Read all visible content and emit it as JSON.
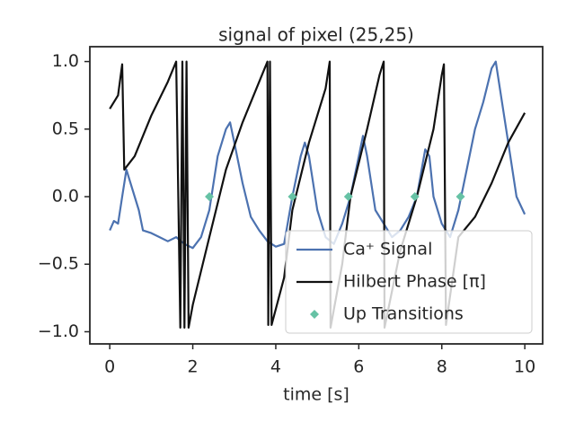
{
  "chart_data": {
    "type": "line",
    "title": "signal of pixel (25,25)",
    "x_label": "time [s]",
    "xlim": [
      -0.48,
      10.43
    ],
    "ylim": [
      -1.09,
      1.11
    ],
    "xticks": [
      0,
      2,
      4,
      6,
      8,
      10
    ],
    "yticks": [
      {
        "value": -1,
        "label": "−1.0"
      },
      {
        "value": -0.5,
        "label": "−0.5"
      },
      {
        "value": 0,
        "label": "0.0"
      },
      0.5,
      {
        "value": 1,
        "label": "1.0"
      }
    ],
    "legend": "lower right",
    "series": [
      {
        "name": "Ca⁺ Signal",
        "color": "#4c72b0",
        "kind": "line",
        "x": [
          0,
          0.1,
          0.2,
          0.3,
          0.4,
          0.5,
          0.6,
          0.7,
          0.8,
          1.0,
          1.2,
          1.4,
          1.6,
          1.8,
          2.0,
          2.2,
          2.4,
          2.6,
          2.8,
          2.9,
          3.0,
          3.2,
          3.4,
          3.6,
          3.8,
          4.0,
          4.2,
          4.4,
          4.6,
          4.7,
          4.8,
          5.0,
          5.2,
          5.4,
          5.6,
          5.8,
          6.0,
          6.1,
          6.2,
          6.4,
          6.6,
          6.8,
          7.0,
          7.2,
          7.4,
          7.6,
          7.7,
          7.8,
          8.0,
          8.2,
          8.4,
          8.6,
          8.8,
          9.0,
          9.2,
          9.3,
          9.4,
          9.6,
          9.8,
          10.0
        ],
        "values": [
          -0.25,
          -0.18,
          -0.2,
          0.0,
          0.2,
          0.1,
          0.0,
          -0.1,
          -0.25,
          -0.27,
          -0.3,
          -0.33,
          -0.3,
          -0.35,
          -0.38,
          -0.3,
          -0.1,
          0.3,
          0.5,
          0.55,
          0.4,
          0.1,
          -0.15,
          -0.25,
          -0.33,
          -0.37,
          -0.35,
          0.0,
          0.3,
          0.4,
          0.3,
          -0.1,
          -0.3,
          -0.35,
          -0.2,
          0.0,
          0.3,
          0.45,
          0.3,
          -0.1,
          -0.2,
          -0.3,
          -0.25,
          -0.15,
          0.0,
          0.35,
          0.3,
          0.0,
          -0.2,
          -0.3,
          -0.1,
          0.2,
          0.5,
          0.7,
          0.95,
          1.0,
          0.8,
          0.4,
          0.0,
          -0.13
        ]
      },
      {
        "name": "Hilbert Phase [π]",
        "color": "#111111",
        "kind": "line",
        "x": [
          0,
          0.1,
          0.2,
          0.3,
          0.35,
          0.6,
          1.0,
          1.4,
          1.6,
          1.7,
          1.75,
          1.8,
          1.85,
          1.9,
          2.0,
          2.4,
          2.8,
          3.2,
          3.6,
          3.8,
          3.82,
          3.86,
          3.9,
          4.2,
          4.4,
          4.8,
          5.2,
          5.3,
          5.32,
          5.6,
          5.8,
          6.2,
          6.5,
          6.6,
          6.62,
          7.0,
          7.4,
          7.8,
          8.0,
          8.05,
          8.1,
          8.4,
          8.8,
          9.2,
          9.6,
          10.0
        ],
        "values": [
          0.65,
          0.7,
          0.75,
          0.98,
          0.2,
          0.3,
          0.6,
          0.85,
          1.0,
          -0.97,
          1.0,
          -0.97,
          1.0,
          -0.97,
          -0.8,
          -0.3,
          0.2,
          0.55,
          0.85,
          1.0,
          -0.95,
          1.0,
          -0.95,
          -0.6,
          -0.1,
          0.4,
          0.8,
          1.0,
          -0.97,
          -0.5,
          0.0,
          0.5,
          0.9,
          1.0,
          -0.97,
          -0.4,
          0.0,
          0.5,
          0.9,
          0.98,
          -0.95,
          -0.3,
          -0.15,
          0.1,
          0.4,
          0.62
        ]
      },
      {
        "name": "Up Transitions",
        "color": "#66c2a5",
        "kind": "scatter",
        "x": [
          2.4,
          4.4,
          5.75,
          7.35,
          8.45
        ],
        "values": [
          0,
          0,
          0,
          0,
          0
        ]
      }
    ]
  }
}
